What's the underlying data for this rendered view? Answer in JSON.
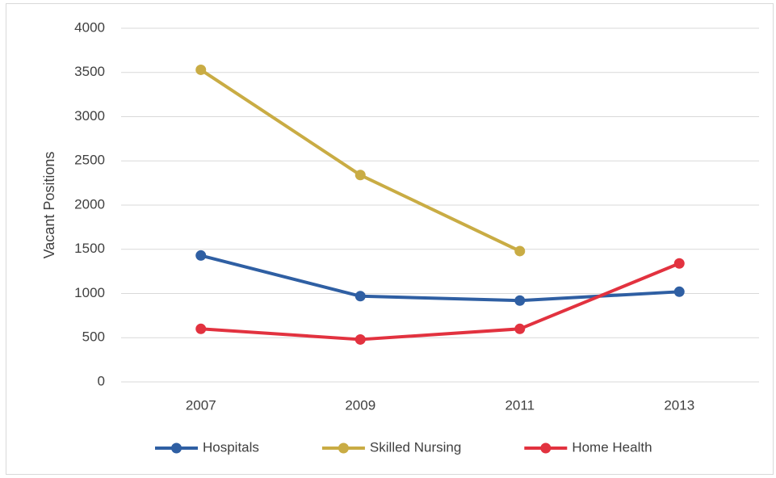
{
  "chart_data": {
    "type": "line",
    "y_label": "Vacant Positions",
    "categories": [
      "2007",
      "2009",
      "2011",
      "2013"
    ],
    "series": [
      {
        "name": "Hospitals",
        "color": "#2f5fa3",
        "values": [
          1430,
          970,
          920,
          1020
        ]
      },
      {
        "name": "Skilled Nursing",
        "color": "#c9ac44",
        "values": [
          3530,
          2340,
          1480,
          null
        ]
      },
      {
        "name": "Home Health",
        "color": "#e2323f",
        "values": [
          600,
          480,
          600,
          1340
        ]
      }
    ],
    "ylim": [
      0,
      4000
    ],
    "yticks": [
      0,
      500,
      1000,
      1500,
      2000,
      2500,
      3000,
      3500,
      4000
    ],
    "grid": true,
    "legend": "bottom"
  }
}
